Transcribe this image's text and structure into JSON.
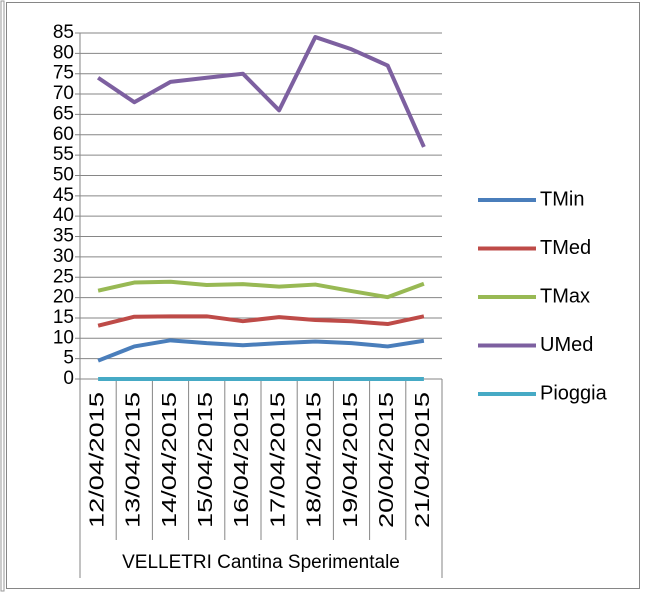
{
  "chart_data": {
    "type": "line",
    "categories": [
      "12/04/2015",
      "13/04/2015",
      "14/04/2015",
      "15/04/2015",
      "16/04/2015",
      "17/04/2015",
      "18/04/2015",
      "19/04/2015",
      "20/04/2015",
      "21/04/2015"
    ],
    "category_group": "VELLETRI Cantina Sperimentale",
    "series": [
      {
        "name": "TMin",
        "color": "#4a7ebb",
        "values": [
          4.5,
          8,
          9.5,
          8.8,
          8.3,
          8.8,
          9.2,
          8.8,
          8,
          9.4
        ]
      },
      {
        "name": "TMed",
        "color": "#be4b48",
        "values": [
          13.1,
          15.3,
          15.4,
          15.4,
          14.2,
          15.2,
          14.5,
          14.2,
          13.5,
          15.4
        ]
      },
      {
        "name": "TMax",
        "color": "#98b954",
        "values": [
          21.7,
          23.7,
          23.9,
          23.1,
          23.3,
          22.7,
          23.2,
          21.6,
          20.1,
          23.4
        ]
      },
      {
        "name": "UMed",
        "color": "#7d60a0",
        "values": [
          74,
          68,
          73,
          74,
          75,
          66,
          84,
          81,
          77,
          57
        ]
      },
      {
        "name": "Pioggia",
        "color": "#46aac5",
        "values": [
          0,
          0,
          0,
          0,
          0,
          0,
          0,
          0,
          0,
          0
        ]
      }
    ],
    "ylim": [
      0,
      85
    ],
    "yticks": [
      0,
      5,
      10,
      15,
      20,
      25,
      30,
      35,
      40,
      45,
      50,
      55,
      60,
      65,
      70,
      75,
      80,
      85
    ],
    "grid": true,
    "legend": "right"
  }
}
